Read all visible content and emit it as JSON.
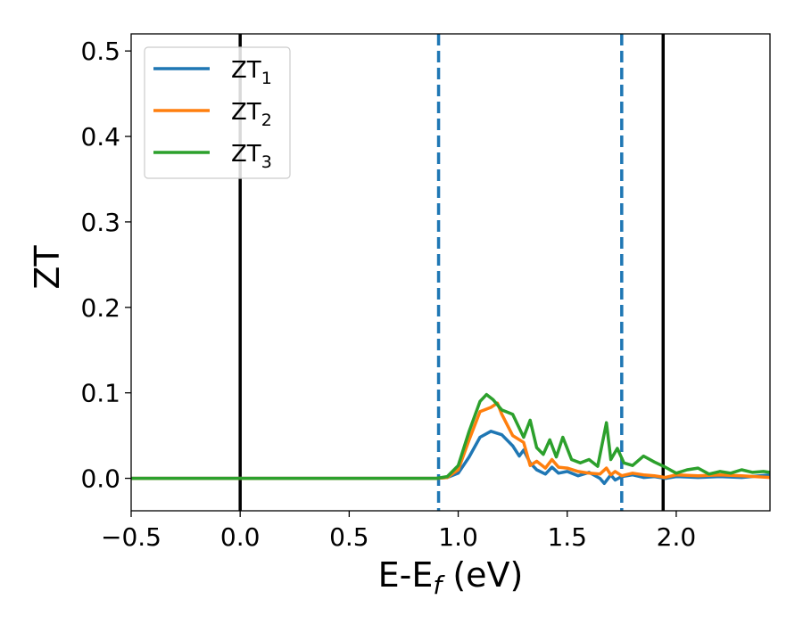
{
  "chart_data": {
    "type": "line",
    "title": "",
    "xlabel": {
      "main": "E-E",
      "sub": "f",
      "suffix": " (eV)"
    },
    "ylabel": "ZT",
    "xlim": [
      -0.5,
      2.43
    ],
    "ylim": [
      -0.038,
      0.52
    ],
    "xticks": [
      -0.5,
      0.0,
      0.5,
      1.0,
      1.5,
      2.0
    ],
    "xtick_labels": [
      "−0.5",
      "0.0",
      "0.5",
      "1.0",
      "1.5",
      "2.0"
    ],
    "yticks": [
      0.0,
      0.1,
      0.2,
      0.3,
      0.4,
      0.5
    ],
    "ytick_labels": [
      "0.0",
      "0.1",
      "0.2",
      "0.3",
      "0.4",
      "0.5"
    ],
    "grid": false,
    "legend_position": "top-left",
    "vertical_lines": [
      {
        "x": 0.0,
        "style": "solid",
        "color": "#000000"
      },
      {
        "x": 0.91,
        "style": "dashed",
        "color": "#1f77b4"
      },
      {
        "x": 1.75,
        "style": "dashed",
        "color": "#1f77b4"
      },
      {
        "x": 1.94,
        "style": "solid",
        "color": "#000000"
      }
    ],
    "series": [
      {
        "name": "ZT",
        "name_sub": "1",
        "color": "#1f77b4",
        "x": [
          -0.5,
          0.9,
          0.95,
          1.0,
          1.05,
          1.1,
          1.15,
          1.2,
          1.25,
          1.28,
          1.3,
          1.33,
          1.36,
          1.4,
          1.43,
          1.46,
          1.5,
          1.55,
          1.6,
          1.65,
          1.67,
          1.7,
          1.72,
          1.75,
          1.8,
          1.85,
          1.9,
          1.95,
          2.0,
          2.1,
          2.2,
          2.3,
          2.43
        ],
        "y": [
          0.0,
          0.0,
          0.001,
          0.006,
          0.025,
          0.048,
          0.055,
          0.051,
          0.038,
          0.026,
          0.033,
          0.018,
          0.01,
          0.005,
          0.013,
          0.006,
          0.008,
          0.003,
          0.007,
          0.0,
          -0.006,
          0.004,
          -0.002,
          0.002,
          0.004,
          0.001,
          0.002,
          0.0,
          0.002,
          0.001,
          0.002,
          0.001,
          0.004
        ]
      },
      {
        "name": "ZT",
        "name_sub": "2",
        "color": "#ff7f0e",
        "x": [
          -0.5,
          0.9,
          0.95,
          1.0,
          1.05,
          1.1,
          1.15,
          1.18,
          1.2,
          1.25,
          1.3,
          1.33,
          1.36,
          1.4,
          1.43,
          1.46,
          1.5,
          1.55,
          1.6,
          1.65,
          1.68,
          1.7,
          1.72,
          1.75,
          1.8,
          1.85,
          1.9,
          1.95,
          2.0,
          2.1,
          2.2,
          2.3,
          2.43
        ],
        "y": [
          0.0,
          0.0,
          0.001,
          0.01,
          0.045,
          0.078,
          0.083,
          0.088,
          0.075,
          0.05,
          0.042,
          0.015,
          0.02,
          0.012,
          0.022,
          0.013,
          0.012,
          0.008,
          0.006,
          0.005,
          0.012,
          0.004,
          0.008,
          0.003,
          0.006,
          0.004,
          0.003,
          0.001,
          0.004,
          0.003,
          0.004,
          0.003,
          0.001
        ]
      },
      {
        "name": "ZT",
        "name_sub": "3",
        "color": "#2ca02c",
        "x": [
          -0.5,
          0.9,
          0.95,
          1.0,
          1.05,
          1.1,
          1.13,
          1.16,
          1.2,
          1.25,
          1.3,
          1.33,
          1.36,
          1.39,
          1.42,
          1.45,
          1.48,
          1.52,
          1.56,
          1.6,
          1.64,
          1.68,
          1.7,
          1.73,
          1.76,
          1.8,
          1.85,
          1.9,
          1.95,
          2.0,
          2.05,
          2.1,
          2.15,
          2.2,
          2.25,
          2.3,
          2.35,
          2.4,
          2.43
        ],
        "y": [
          0.0,
          0.0,
          0.002,
          0.015,
          0.055,
          0.09,
          0.098,
          0.092,
          0.08,
          0.075,
          0.048,
          0.068,
          0.036,
          0.028,
          0.045,
          0.025,
          0.048,
          0.022,
          0.018,
          0.022,
          0.014,
          0.065,
          0.022,
          0.035,
          0.018,
          0.015,
          0.026,
          0.019,
          0.013,
          0.006,
          0.01,
          0.012,
          0.005,
          0.008,
          0.006,
          0.01,
          0.007,
          0.008,
          0.007
        ]
      }
    ]
  }
}
